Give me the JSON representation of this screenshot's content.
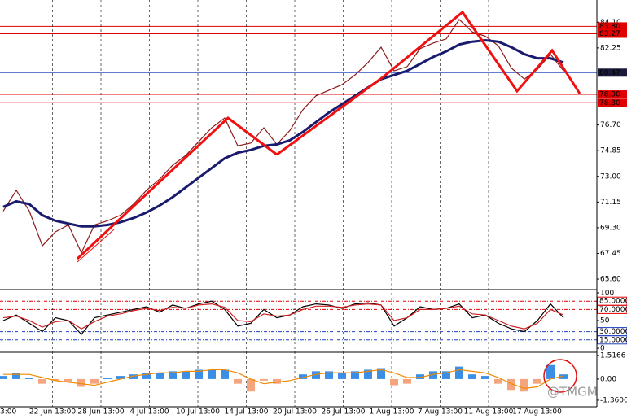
{
  "chart_data": [
    {
      "type": "line",
      "values_close": [
        70.5,
        72.0,
        70.5,
        68.0,
        69.0,
        69.5,
        67.5,
        69.5,
        69.8,
        70.2,
        71.0,
        72.0,
        72.8,
        73.8,
        74.5,
        75.5,
        76.5,
        77.2,
        75.2,
        75.4,
        76.5,
        75.3,
        76.3,
        77.8,
        78.8,
        79.2,
        79.6,
        80.3,
        81.2,
        82.3,
        80.6,
        80.9,
        82.2,
        82.6,
        82.9,
        84.3,
        83.4,
        83.1,
        82.4,
        80.8,
        80.0,
        80.7,
        81.8,
        80.6
      ],
      "series": [
        {
          "color": "#8b1a1a",
          "values": [
            70.5,
            72.0,
            70.5,
            68.0,
            69.0,
            69.5,
            67.5,
            69.5,
            69.8,
            70.2,
            71.0,
            72.0,
            72.8,
            73.8,
            74.5,
            75.5,
            76.5,
            77.2,
            75.2,
            75.4,
            76.5,
            75.3,
            76.3,
            77.8,
            78.8,
            79.2,
            79.6,
            80.3,
            81.2,
            82.3,
            80.6,
            80.9,
            82.2,
            82.6,
            82.9,
            84.3,
            83.4,
            83.1,
            82.4,
            80.8,
            80.0,
            80.7,
            81.8,
            80.6
          ]
        },
        {
          "color": "#1a1a6e",
          "values": [
            70.8,
            71.2,
            71.0,
            70.2,
            69.8,
            69.6,
            69.4,
            69.4,
            69.5,
            69.7,
            70.0,
            70.4,
            70.9,
            71.5,
            72.2,
            72.9,
            73.6,
            74.3,
            74.7,
            74.9,
            75.2,
            75.3,
            75.6,
            76.2,
            76.9,
            77.6,
            78.2,
            78.8,
            79.4,
            80.0,
            80.3,
            80.6,
            81.1,
            81.6,
            82.0,
            82.5,
            82.7,
            82.8,
            82.7,
            82.3,
            81.8,
            81.5,
            81.5,
            81.2
          ]
        }
      ],
      "ylim": [
        64.9,
        85.7
      ],
      "yticks": [
        {
          "value": 84.1,
          "label": "84.10"
        },
        82.25,
        {
          "value": 76.7,
          "label": "76.70"
        },
        74.85,
        {
          "value": 73,
          "label": "73.00"
        },
        71.15,
        {
          "value": 69.3,
          "label": "69.30"
        },
        67.45,
        {
          "value": 65.6,
          "label": "65.60"
        }
      ],
      "levels": [
        {
          "value": 83.8,
          "label": "83.80",
          "color": "#e00000"
        },
        {
          "value": 83.27,
          "label": "83.27",
          "color": "#e00000"
        },
        {
          "value": 80.47,
          "label": "80.47",
          "color": "#3050c0"
        },
        {
          "value": 78.9,
          "label": "78.90",
          "color": "#e00000"
        },
        {
          "value": 78.3,
          "label": "78.30",
          "color": "#e00000"
        }
      ],
      "watermark": "@TMGM"
    },
    {
      "type": "line",
      "series": [
        {
          "color": "#000000",
          "values": [
            50,
            60,
            45,
            30,
            55,
            50,
            25,
            55,
            60,
            65,
            70,
            75,
            65,
            78,
            72,
            80,
            85,
            70,
            40,
            45,
            70,
            55,
            60,
            75,
            80,
            78,
            72,
            80,
            82,
            78,
            40,
            55,
            75,
            70,
            72,
            80,
            55,
            60,
            45,
            35,
            30,
            50,
            80,
            55
          ]
        },
        {
          "color": "#d02020",
          "values": [
            55,
            58,
            50,
            38,
            48,
            50,
            35,
            48,
            58,
            62,
            68,
            72,
            68,
            74,
            72,
            78,
            80,
            74,
            50,
            48,
            62,
            58,
            60,
            70,
            76,
            76,
            74,
            78,
            80,
            78,
            50,
            55,
            70,
            70,
            72,
            76,
            62,
            60,
            50,
            40,
            35,
            45,
            70,
            60
          ]
        }
      ],
      "ylim": [
        -5.9,
        104.4
      ],
      "yticks": [
        100,
        50,
        0
      ],
      "levels": [
        {
          "value": 85,
          "label": "85.0000",
          "color": "#e00000"
        },
        {
          "value": 70,
          "label": "70.0000",
          "color": "#e00000"
        },
        {
          "value": 30,
          "label": "30.0000",
          "color": "#2040c0"
        },
        {
          "value": 15,
          "label": "15.0000",
          "color": "#2040c0"
        }
      ]
    },
    {
      "type": "bar",
      "values": [
        0.2,
        0.4,
        0.1,
        -0.3,
        -0.1,
        -0.2,
        -0.5,
        -0.3,
        0.1,
        0.2,
        0.3,
        0.4,
        0.4,
        0.5,
        0.5,
        0.6,
        0.6,
        0.6,
        -0.3,
        -0.8,
        -0.1,
        -0.3,
        0.0,
        0.3,
        0.5,
        0.5,
        0.4,
        0.5,
        0.6,
        0.7,
        -0.4,
        -0.3,
        0.3,
        0.5,
        0.5,
        0.8,
        0.3,
        0.2,
        -0.3,
        -0.7,
        -0.8,
        -0.3,
        0.9,
        0.3
      ],
      "positive_color": "#3a8ee6",
      "negative_color": "#f4a57e",
      "series": [
        {
          "color": "#f08a00",
          "values": [
            0.3,
            0.3,
            0.3,
            0.1,
            -0.1,
            -0.2,
            -0.3,
            -0.4,
            -0.2,
            0.0,
            0.2,
            0.3,
            0.4,
            0.4,
            0.5,
            0.5,
            0.6,
            0.6,
            0.4,
            0.0,
            -0.3,
            -0.2,
            -0.1,
            0.1,
            0.3,
            0.4,
            0.4,
            0.4,
            0.5,
            0.6,
            0.4,
            0.1,
            0.1,
            0.3,
            0.4,
            0.6,
            0.5,
            0.4,
            0.1,
            -0.3,
            -0.6,
            -0.5,
            0.0,
            0.2
          ]
        }
      ],
      "ylim": [
        -1.73,
        1.67
      ],
      "yticks": [
        {
          "value": 1.5166,
          "label": "1.5166"
        },
        {
          "value": 0,
          "label": "0.00"
        },
        -1.3606
      ],
      "xticklabels": [
        "3:00",
        "22 Jun 13:00",
        "28 Jun 13:00",
        "4 Jul 13:00",
        "10 Jul 13:00",
        "14 Jul 13:00",
        "20 Jul 13:00",
        "26 Jul 13:00",
        "1 Aug 13:00",
        "7 Aug 13:00",
        "11 Aug 13:00",
        "17 Aug 13:00"
      ]
    }
  ]
}
